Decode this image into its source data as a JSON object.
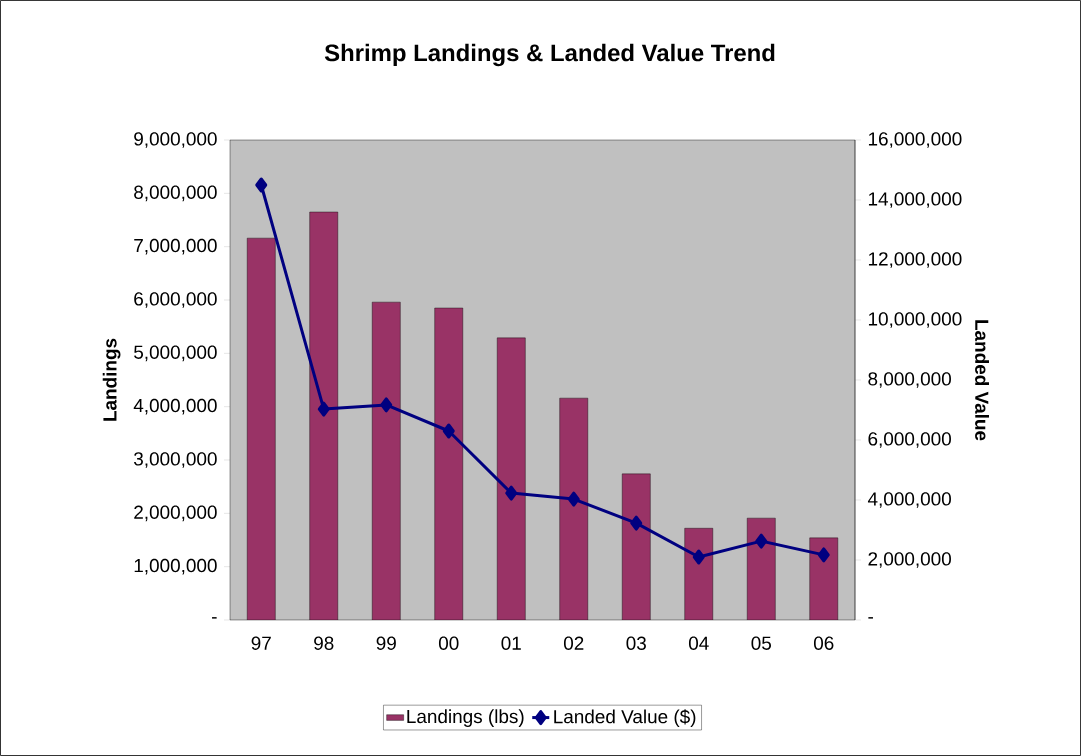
{
  "chart_data": {
    "type": "bar",
    "title": "Shrimp Landings & Landed Value Trend",
    "ylabel": "Landings",
    "y2label": "Landed Value",
    "categories": [
      "97",
      "98",
      "99",
      "00",
      "01",
      "02",
      "03",
      "04",
      "05",
      "06"
    ],
    "series": [
      {
        "name": "Landings (lbs)",
        "color": "#993366",
        "values": [
          7160000,
          7650000,
          5960000,
          5850000,
          5290000,
          4160000,
          2740000,
          1720000,
          1910000,
          1540000
        ]
      },
      {
        "name": "Landed Value ($)",
        "type": "line",
        "axis": "y2",
        "color": "#000080",
        "marker": "diamond",
        "values": [
          14500000,
          7030000,
          7170000,
          6300000,
          4230000,
          4030000,
          3230000,
          2100000,
          2630000,
          2170000
        ]
      }
    ],
    "ylim": [
      0,
      9000000
    ],
    "yticks": [
      {
        "value": 0,
        "label": "-"
      },
      {
        "value": 1000000,
        "label": "1,000,000"
      },
      {
        "value": 2000000,
        "label": "2,000,000"
      },
      {
        "value": 3000000,
        "label": "3,000,000"
      },
      {
        "value": 4000000,
        "label": "4,000,000"
      },
      {
        "value": 5000000,
        "label": "5,000,000"
      },
      {
        "value": 6000000,
        "label": "6,000,000"
      },
      {
        "value": 7000000,
        "label": "7,000,000"
      },
      {
        "value": 8000000,
        "label": "8,000,000"
      },
      {
        "value": 9000000,
        "label": "9,000,000"
      }
    ],
    "y2lim": [
      0,
      16000000
    ],
    "y2ticks": [
      {
        "value": 0,
        "label": "-"
      },
      {
        "value": 2000000,
        "label": "2,000,000"
      },
      {
        "value": 4000000,
        "label": "4,000,000"
      },
      {
        "value": 6000000,
        "label": "6,000,000"
      },
      {
        "value": 8000000,
        "label": "8,000,000"
      },
      {
        "value": 10000000,
        "label": "10,000,000"
      },
      {
        "value": 12000000,
        "label": "12,000,000"
      },
      {
        "value": 14000000,
        "label": "14,000,000"
      },
      {
        "value": 16000000,
        "label": "16,000,000"
      }
    ],
    "legend": "bottom",
    "grid": false
  }
}
